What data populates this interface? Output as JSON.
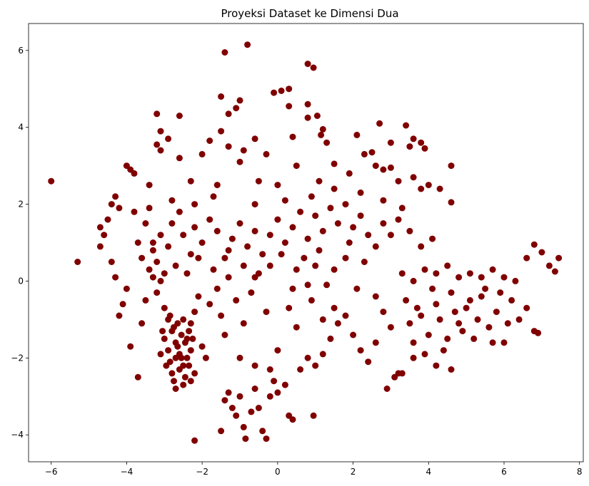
{
  "chart_data": {
    "type": "scatter",
    "title": "Proyeksi Dataset ke Dimensi Dua",
    "xlabel": "",
    "ylabel": "",
    "xlim": [
      -6.6,
      8.1
    ],
    "ylim": [
      -4.7,
      6.7
    ],
    "x_ticks": [
      -6,
      -4,
      -2,
      0,
      2,
      4,
      6,
      8
    ],
    "y_ticks": [
      -4,
      -2,
      0,
      2,
      4,
      6
    ],
    "x_tick_labels": [
      "−6",
      "−4",
      "−2",
      "0",
      "2",
      "4",
      "6",
      "8"
    ],
    "y_tick_labels": [
      "−4",
      "−2",
      "0",
      "2",
      "4",
      "6"
    ],
    "grid": false,
    "marker_color": "#800000",
    "series": [
      {
        "values": [
          [
            -6.0,
            2.6
          ],
          [
            -5.3,
            0.5
          ],
          [
            -1.4,
            5.95
          ],
          [
            -0.8,
            6.15
          ],
          [
            0.8,
            5.65
          ],
          [
            0.95,
            5.55
          ],
          [
            -1.5,
            4.8
          ],
          [
            -1.0,
            4.7
          ],
          [
            0.1,
            4.95
          ],
          [
            0.3,
            5.0
          ],
          [
            -0.1,
            4.9
          ],
          [
            0.8,
            4.6
          ],
          [
            -3.2,
            4.35
          ],
          [
            -2.6,
            4.3
          ],
          [
            -1.3,
            4.35
          ],
          [
            -1.1,
            4.5
          ],
          [
            0.3,
            4.55
          ],
          [
            0.8,
            4.25
          ],
          [
            1.05,
            4.3
          ],
          [
            2.7,
            4.1
          ],
          [
            3.4,
            4.05
          ],
          [
            -3.1,
            3.9
          ],
          [
            -2.9,
            3.7
          ],
          [
            -1.5,
            3.9
          ],
          [
            -1.8,
            3.65
          ],
          [
            -0.6,
            3.7
          ],
          [
            0.4,
            3.75
          ],
          [
            1.2,
            3.95
          ],
          [
            1.15,
            3.8
          ],
          [
            2.1,
            3.8
          ],
          [
            3.6,
            3.7
          ],
          [
            3.8,
            3.6
          ],
          [
            -3.2,
            3.55
          ],
          [
            -3.1,
            3.4
          ],
          [
            -2.6,
            3.2
          ],
          [
            -2.0,
            3.3
          ],
          [
            -1.3,
            3.5
          ],
          [
            -0.9,
            3.4
          ],
          [
            -0.3,
            3.3
          ],
          [
            1.3,
            3.6
          ],
          [
            3.0,
            3.6
          ],
          [
            3.5,
            3.5
          ],
          [
            3.9,
            3.45
          ],
          [
            -4.0,
            3.0
          ],
          [
            -3.8,
            2.8
          ],
          [
            -3.9,
            2.9
          ],
          [
            -1.0,
            3.1
          ],
          [
            0.5,
            3.0
          ],
          [
            1.5,
            3.05
          ],
          [
            2.3,
            3.3
          ],
          [
            2.5,
            3.35
          ],
          [
            4.6,
            3.0
          ],
          [
            -4.3,
            2.2
          ],
          [
            -4.4,
            2.0
          ],
          [
            -3.4,
            2.5
          ],
          [
            -2.3,
            2.6
          ],
          [
            -1.6,
            2.5
          ],
          [
            -0.5,
            2.6
          ],
          [
            0.0,
            2.5
          ],
          [
            1.1,
            2.6
          ],
          [
            1.9,
            2.8
          ],
          [
            2.6,
            3.0
          ],
          [
            2.8,
            2.9
          ],
          [
            3.0,
            2.95
          ],
          [
            3.2,
            2.6
          ],
          [
            3.6,
            2.7
          ],
          [
            4.3,
            2.4
          ],
          [
            4.6,
            2.05
          ],
          [
            -4.7,
            1.4
          ],
          [
            -4.6,
            1.2
          ],
          [
            -3.8,
            1.8
          ],
          [
            -3.4,
            1.9
          ],
          [
            -2.8,
            2.1
          ],
          [
            -2.2,
            2.0
          ],
          [
            -1.7,
            2.2
          ],
          [
            -0.6,
            2.0
          ],
          [
            0.2,
            2.1
          ],
          [
            0.9,
            2.2
          ],
          [
            1.5,
            2.4
          ],
          [
            2.2,
            2.3
          ],
          [
            2.8,
            2.1
          ],
          [
            3.3,
            1.9
          ],
          [
            3.8,
            2.4
          ],
          [
            4.0,
            2.5
          ],
          [
            -4.7,
            0.9
          ],
          [
            -4.4,
            0.5
          ],
          [
            -4.3,
            0.1
          ],
          [
            -4.0,
            -0.2
          ],
          [
            -4.1,
            -0.6
          ],
          [
            -4.2,
            -0.9
          ],
          [
            -3.9,
            -1.7
          ],
          [
            -3.7,
            -2.5
          ],
          [
            -3.6,
            -1.1
          ],
          [
            -3.5,
            -0.5
          ],
          [
            -3.4,
            0.3
          ],
          [
            -3.3,
            0.8
          ],
          [
            -3.2,
            0.5
          ],
          [
            -3.1,
            1.2
          ],
          [
            -3.0,
            0.2
          ],
          [
            -2.9,
            0.9
          ],
          [
            -2.8,
            1.5
          ],
          [
            -2.6,
            1.8
          ],
          [
            -2.5,
            1.2
          ],
          [
            -2.3,
            0.7
          ],
          [
            -2.2,
            1.4
          ],
          [
            -2.0,
            1.0
          ],
          [
            -1.8,
            1.6
          ],
          [
            -1.6,
            1.3
          ],
          [
            -1.4,
            0.6
          ],
          [
            -1.2,
            1.1
          ],
          [
            -1.0,
            1.5
          ],
          [
            -0.8,
            0.9
          ],
          [
            -0.6,
            1.3
          ],
          [
            -0.4,
            0.7
          ],
          [
            -0.2,
            1.2
          ],
          [
            0.0,
            1.6
          ],
          [
            0.2,
            1.0
          ],
          [
            0.4,
            1.4
          ],
          [
            0.6,
            1.8
          ],
          [
            0.8,
            1.1
          ],
          [
            1.0,
            1.7
          ],
          [
            1.2,
            1.3
          ],
          [
            1.4,
            1.9
          ],
          [
            1.6,
            1.5
          ],
          [
            1.8,
            2.0
          ],
          [
            2.0,
            1.4
          ],
          [
            2.2,
            1.7
          ],
          [
            2.4,
            1.2
          ],
          [
            2.6,
            0.9
          ],
          [
            2.8,
            1.5
          ],
          [
            3.0,
            1.2
          ],
          [
            3.2,
            1.6
          ],
          [
            3.5,
            1.3
          ],
          [
            3.8,
            0.9
          ],
          [
            4.1,
            1.1
          ],
          [
            -3.6,
            0.6
          ],
          [
            -3.3,
            0.1
          ],
          [
            -3.2,
            -0.3
          ],
          [
            -3.0,
            -0.7
          ],
          [
            -2.9,
            -1.0
          ],
          [
            -2.8,
            -1.3
          ],
          [
            -2.7,
            -1.6
          ],
          [
            -2.6,
            -1.9
          ],
          [
            -2.5,
            -2.2
          ],
          [
            -2.4,
            -1.5
          ],
          [
            -2.3,
            -1.1
          ],
          [
            -2.2,
            -0.8
          ],
          [
            -2.1,
            -0.4
          ],
          [
            -2.0,
            -1.7
          ],
          [
            -1.9,
            -2.0
          ],
          [
            -1.8,
            -0.6
          ],
          [
            -1.6,
            -0.2
          ],
          [
            -1.5,
            -0.9
          ],
          [
            -1.4,
            -1.4
          ],
          [
            -1.3,
            0.1
          ],
          [
            -1.1,
            -0.5
          ],
          [
            -0.9,
            -1.1
          ],
          [
            -0.7,
            -0.3
          ],
          [
            -0.5,
            0.2
          ],
          [
            -0.3,
            -0.8
          ],
          [
            -3.0,
            -1.5
          ],
          [
            -2.9,
            -1.8
          ],
          [
            -2.85,
            -2.1
          ],
          [
            -2.8,
            -2.4
          ],
          [
            -2.75,
            -1.2
          ],
          [
            -2.7,
            -2.0
          ],
          [
            -2.65,
            -1.7
          ],
          [
            -2.6,
            -2.3
          ],
          [
            -2.55,
            -1.4
          ],
          [
            -2.5,
            -1.0
          ],
          [
            -2.45,
            -2.5
          ],
          [
            -2.4,
            -2.0
          ],
          [
            -2.35,
            -1.3
          ],
          [
            -2.3,
            -1.8
          ],
          [
            -3.1,
            -1.9
          ],
          [
            -3.05,
            -1.3
          ],
          [
            -2.95,
            -2.2
          ],
          [
            -2.85,
            -0.9
          ],
          [
            -2.75,
            -2.6
          ],
          [
            -2.65,
            -1.1
          ],
          [
            -2.55,
            -2.0
          ],
          [
            -2.45,
            -1.6
          ],
          [
            -2.35,
            -2.2
          ],
          [
            -2.25,
            -1.5
          ],
          [
            -2.2,
            -2.4
          ],
          [
            -2.7,
            -2.8
          ],
          [
            -2.5,
            -2.7
          ],
          [
            -2.3,
            -2.6
          ],
          [
            -2.2,
            -4.15
          ],
          [
            -1.5,
            -3.9
          ],
          [
            -1.4,
            -3.1
          ],
          [
            -1.3,
            -2.9
          ],
          [
            -1.2,
            -3.3
          ],
          [
            -1.1,
            -3.5
          ],
          [
            -1.0,
            -3.0
          ],
          [
            -0.9,
            -3.8
          ],
          [
            -0.85,
            -4.1
          ],
          [
            -0.7,
            -3.4
          ],
          [
            -0.6,
            -2.8
          ],
          [
            -0.5,
            -3.3
          ],
          [
            -0.4,
            -3.9
          ],
          [
            -0.3,
            -4.1
          ],
          [
            -0.2,
            -3.0
          ],
          [
            -0.1,
            -2.6
          ],
          [
            0.0,
            -2.9
          ],
          [
            0.2,
            -2.7
          ],
          [
            0.4,
            -3.6
          ],
          [
            0.3,
            -3.5
          ],
          [
            0.6,
            -2.3
          ],
          [
            0.8,
            -2.0
          ],
          [
            0.95,
            -3.5
          ],
          [
            1.0,
            -2.2
          ],
          [
            1.2,
            -1.9
          ],
          [
            1.4,
            -1.5
          ],
          [
            -1.0,
            -2.0
          ],
          [
            -0.6,
            -2.2
          ],
          [
            -0.2,
            -2.3
          ],
          [
            0.0,
            -1.8
          ],
          [
            1.5,
            -0.7
          ],
          [
            1.6,
            -1.1
          ],
          [
            1.8,
            -0.9
          ],
          [
            2.0,
            -1.4
          ],
          [
            2.2,
            -1.8
          ],
          [
            2.4,
            -2.1
          ],
          [
            2.6,
            -1.6
          ],
          [
            2.8,
            -0.8
          ],
          [
            3.0,
            -1.2
          ],
          [
            3.2,
            -2.4
          ],
          [
            2.9,
            -2.8
          ],
          [
            3.4,
            -0.5
          ],
          [
            3.6,
            -1.6
          ],
          [
            3.8,
            -0.9
          ],
          [
            4.0,
            -1.4
          ],
          [
            4.2,
            -0.6
          ],
          [
            4.4,
            -1.8
          ],
          [
            4.6,
            -0.3
          ],
          [
            4.8,
            -1.1
          ],
          [
            5.0,
            -0.7
          ],
          [
            5.2,
            -1.5
          ],
          [
            5.4,
            -0.4
          ],
          [
            5.6,
            -1.2
          ],
          [
            5.8,
            -0.8
          ],
          [
            6.0,
            -1.6
          ],
          [
            6.2,
            -0.5
          ],
          [
            6.4,
            -1.0
          ],
          [
            6.6,
            -0.7
          ],
          [
            6.8,
            -1.3
          ],
          [
            3.5,
            -1.1
          ],
          [
            3.7,
            -0.7
          ],
          [
            3.9,
            -1.9
          ],
          [
            4.1,
            -0.2
          ],
          [
            4.3,
            -1.0
          ],
          [
            4.5,
            -1.5
          ],
          [
            4.7,
            -0.8
          ],
          [
            4.9,
            -1.3
          ],
          [
            5.1,
            -0.5
          ],
          [
            5.3,
            -1.0
          ],
          [
            5.5,
            -0.2
          ],
          [
            5.7,
            -1.6
          ],
          [
            5.9,
            -0.3
          ],
          [
            6.1,
            -1.1
          ],
          [
            3.3,
            0.2
          ],
          [
            3.6,
            0.0
          ],
          [
            3.9,
            0.3
          ],
          [
            4.2,
            0.2
          ],
          [
            4.5,
            0.4
          ],
          [
            4.8,
            0.1
          ],
          [
            5.1,
            0.2
          ],
          [
            5.4,
            0.1
          ],
          [
            5.7,
            0.3
          ],
          [
            6.0,
            0.1
          ],
          [
            6.3,
            0.0
          ],
          [
            6.6,
            0.6
          ],
          [
            6.8,
            0.95
          ],
          [
            7.0,
            0.75
          ],
          [
            7.2,
            0.4
          ],
          [
            7.35,
            0.25
          ],
          [
            7.45,
            0.6
          ],
          [
            6.9,
            -1.35
          ],
          [
            4.6,
            -2.3
          ],
          [
            4.2,
            -2.2
          ],
          [
            3.1,
            -2.5
          ],
          [
            3.3,
            -2.4
          ],
          [
            3.6,
            -2.0
          ],
          [
            1.0,
            0.4
          ],
          [
            0.7,
            0.6
          ],
          [
            0.4,
            -0.2
          ],
          [
            0.3,
            -0.7
          ],
          [
            1.3,
            -0.1
          ],
          [
            1.5,
            0.3
          ],
          [
            1.8,
            0.6
          ],
          [
            2.1,
            -0.2
          ],
          [
            2.3,
            0.5
          ],
          [
            2.6,
            -0.4
          ],
          [
            0.9,
            -0.5
          ],
          [
            0.5,
            -1.2
          ],
          [
            1.2,
            -1.0
          ],
          [
            0.8,
            -0.1
          ],
          [
            1.1,
            0.8
          ],
          [
            1.9,
            1.0
          ],
          [
            -4.5,
            1.6
          ],
          [
            -4.2,
            1.9
          ],
          [
            -3.7,
            1.0
          ],
          [
            -3.5,
            1.5
          ],
          [
            -3.3,
            1.0
          ],
          [
            -3.1,
            0.0
          ],
          [
            -2.7,
            0.4
          ],
          [
            -2.4,
            0.2
          ],
          [
            -2.1,
            0.6
          ],
          [
            -1.7,
            0.3
          ],
          [
            -1.3,
            0.8
          ],
          [
            -0.9,
            0.4
          ],
          [
            -0.6,
            0.1
          ],
          [
            -0.2,
            0.4
          ],
          [
            0.1,
            0.7
          ],
          [
            0.5,
            0.3
          ]
        ]
      }
    ]
  }
}
